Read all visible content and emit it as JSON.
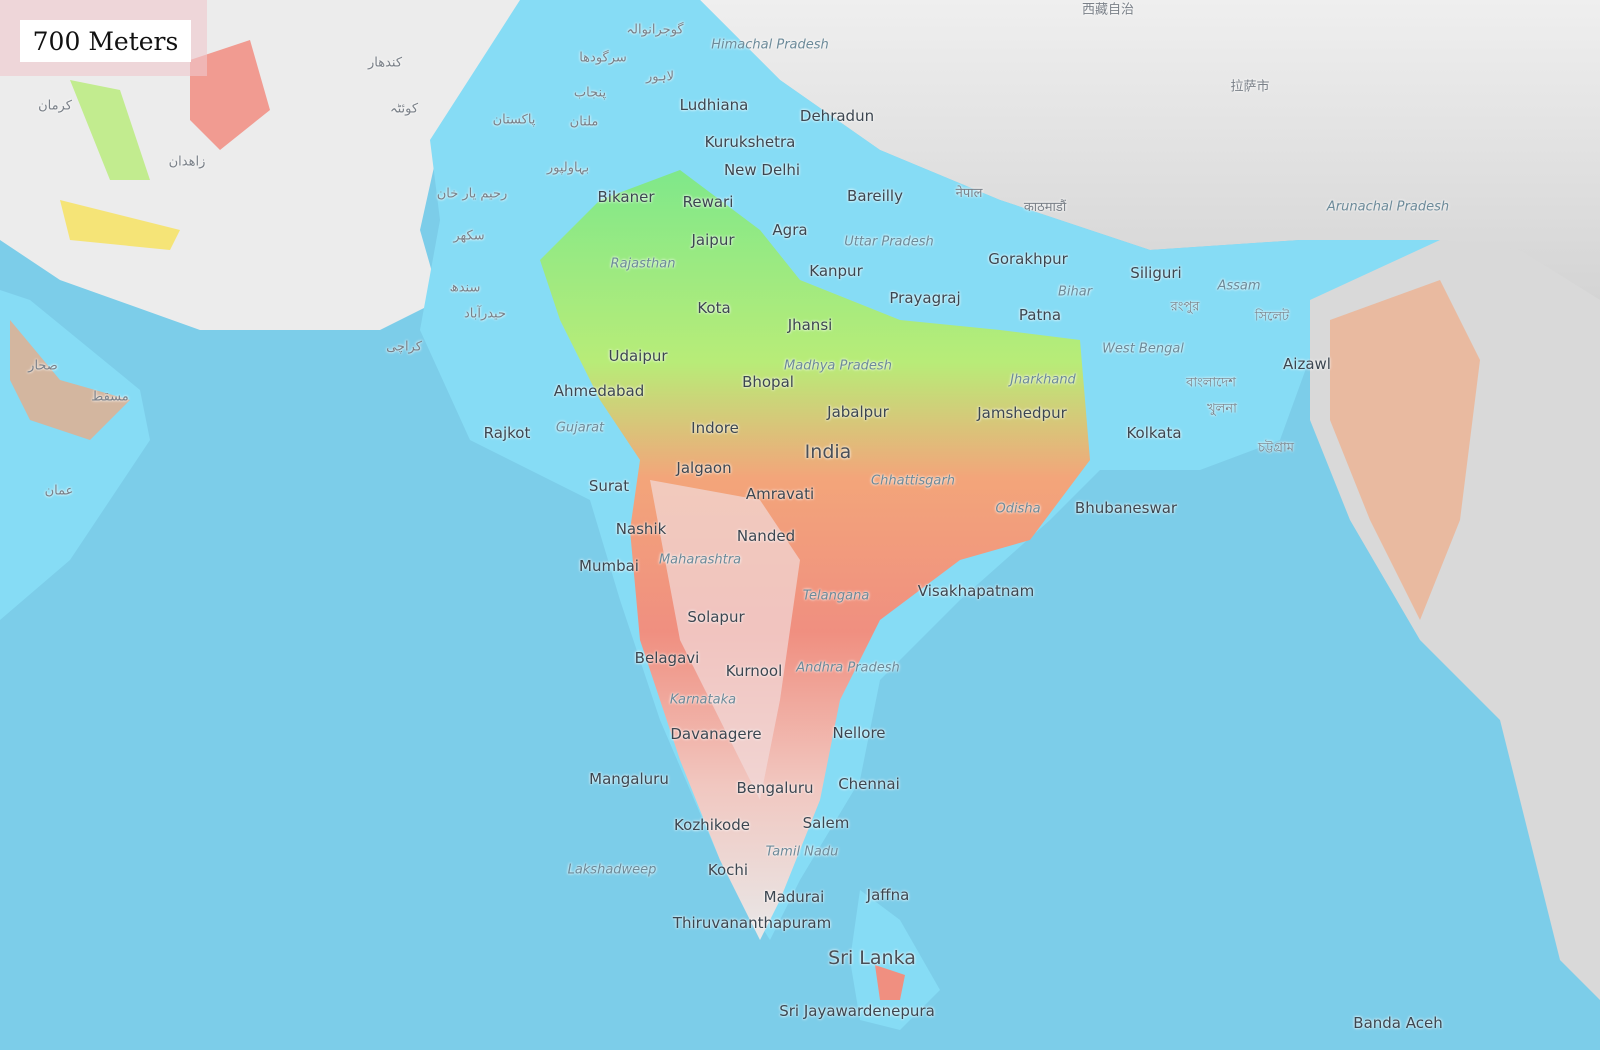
{
  "overlay": {
    "label": "700 Meters"
  },
  "colors": {
    "ocean": "#7ccde9",
    "flooded_lowland": "#86dcf5",
    "land": "#e9e9e9",
    "low_elevation": "#7fe88a",
    "mid_elevation": "#f6e36a",
    "high_elevation": "#f3877a",
    "peak": "#f3efef"
  },
  "labels": {
    "cities": [
      "Ludhiana",
      "Dehradun",
      "Kurukshetra",
      "New Delhi",
      "Bareilly",
      "Bikaner",
      "Rewari",
      "Jaipur",
      "Agra",
      "Kanpur",
      "Gorakhpur",
      "Siliguri",
      "Prayagraj",
      "Patna",
      "Kota",
      "Jhansi",
      "Udaipur",
      "Ahmedabad",
      "Bhopal",
      "Aizawl",
      "Jabalpur",
      "Jamshedpur",
      "Rajkot",
      "Indore",
      "Kolkata",
      "Jalgaon",
      "Surat",
      "Amravati",
      "Bhubaneswar",
      "Nashik",
      "Nanded",
      "Mumbai",
      "Visakhapatnam",
      "Solapur",
      "Belagavi",
      "Kurnool",
      "Davanagere",
      "Nellore",
      "Mangaluru",
      "Chennai",
      "Bengaluru",
      "Kozhikode",
      "Salem",
      "Kochi",
      "Jaffna",
      "Madurai",
      "Thiruvananthapuram",
      "Sri Jayawardenepura",
      "Banda Aceh"
    ],
    "regions": [
      "Uttar Pradesh",
      "Rajasthan",
      "Bihar",
      "Assam",
      "Arunachal Pradesh",
      "Madhya Pradesh",
      "West Bengal",
      "Jharkhand",
      "Gujarat",
      "Chhattisgarh",
      "Odisha",
      "Maharashtra",
      "Telangana",
      "Andhra Pradesh",
      "Karnataka",
      "Tamil Nadu",
      "Lakshadweep",
      "Himachal Pradesh"
    ],
    "countries": [
      "India",
      "Sri Lanka"
    ],
    "foreign": [
      "لاہور",
      "گوجرانوالہ",
      "سرگودھا",
      "ملتان",
      "پاکستان",
      "بہاولپور",
      "رحیم یار خان",
      "سکھر",
      "حیدرآباد",
      "کراچی",
      "کوئٹہ",
      "کندهار",
      "زاهدان",
      "کرمان",
      "عمان",
      "नेपाल",
      "काठमाडौं",
      "বাংলাদেশ",
      "খুলনা",
      "চট্টগ্রাম",
      "রংপুর",
      "সিলেট",
      "拉萨市",
      "西藏自治",
      "صحار",
      "مسقط",
      "پنجاب",
      "سندھ"
    ]
  }
}
